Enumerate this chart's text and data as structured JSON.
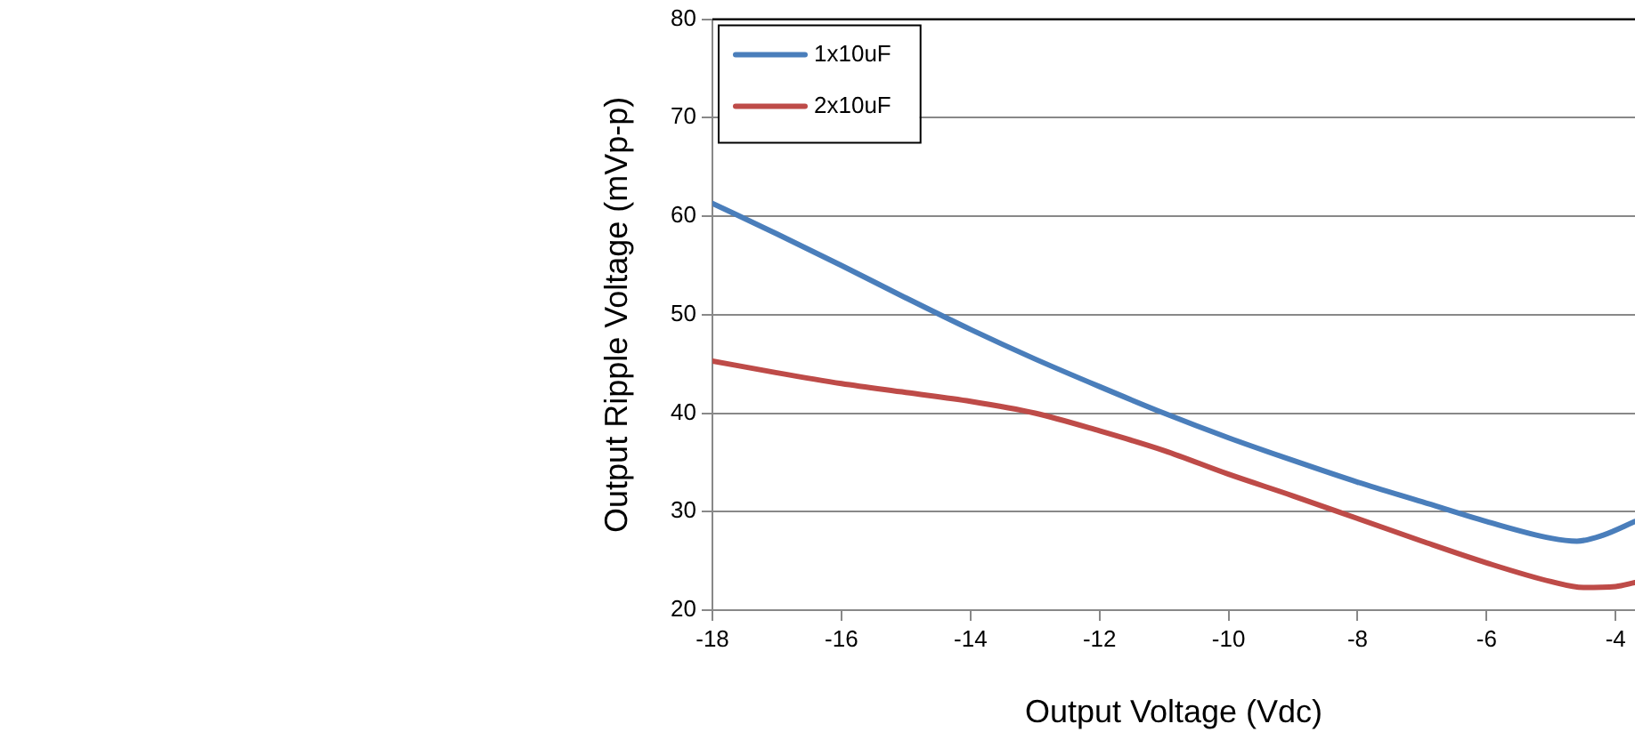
{
  "chart_data": {
    "type": "line",
    "xlabel": "Output Voltage (Vdc)",
    "ylabel": "Output Ripple Voltage (mVp-p)",
    "xlim": [
      -18,
      -3.7
    ],
    "xticks": [
      -18,
      -16,
      -14,
      -12,
      -10,
      -8,
      -6,
      -4
    ],
    "ylim": [
      20,
      80
    ],
    "yticks": [
      20,
      30,
      40,
      50,
      60,
      70,
      80
    ],
    "grid": "y",
    "legend": "top left",
    "marker": "none",
    "line_style": "solid",
    "series": [
      {
        "name": "1x10uF",
        "color": "#4a7ebb",
        "x": [
          -18,
          -17,
          -16,
          -15,
          -14,
          -13,
          -12,
          -11,
          -10,
          -9,
          -8,
          -7,
          -6,
          -5,
          -4.6,
          -4.2,
          -3.7
        ],
        "values": [
          61.3,
          58.2,
          55,
          51.7,
          48.5,
          45.5,
          42.7,
          40,
          37.5,
          35.2,
          33,
          31,
          29,
          27.3,
          27,
          27.6,
          29
        ]
      },
      {
        "name": "2x10uF",
        "color": "#be4b48",
        "x": [
          -18,
          -17,
          -16,
          -15,
          -14,
          -13,
          -12,
          -11,
          -10,
          -9,
          -8,
          -7,
          -6,
          -5,
          -4.5,
          -4,
          -3.7
        ],
        "values": [
          45.3,
          44.1,
          43,
          42.1,
          41.2,
          40,
          38.2,
          36.2,
          33.8,
          31.6,
          29.3,
          27,
          24.8,
          22.9,
          22.3,
          22.4,
          22.8
        ]
      }
    ]
  }
}
